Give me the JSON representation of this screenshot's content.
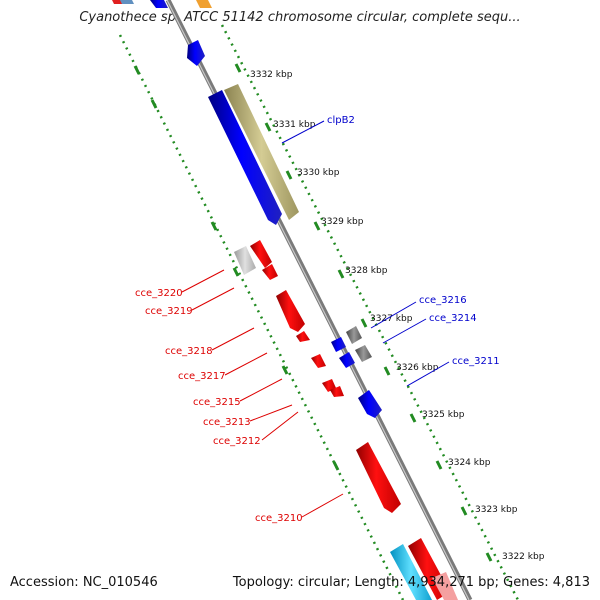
{
  "title": "Cyanothece sp. ATCC 51142 chromosome circular, complete sequ...",
  "footer": {
    "accession": "Accession: NC_010546",
    "summary": "Topology: circular; Length: 4,934,271 bp; Genes: 4,813"
  },
  "colors": {
    "forward_strand": "#0000ee",
    "reverse_strand": "#ee0000",
    "rna": "#b0a870",
    "grey_feature": "#777777",
    "light_grey_feature": "#c0c0c0",
    "cyan_feature": "#22c8f0",
    "backbone": "#888888",
    "dotted_guides": "#228b22"
  },
  "axis": {
    "ticks": [
      "3332 kbp",
      "3331 kbp",
      "3330 kbp",
      "3329 kbp",
      "3328 kbp",
      "3327 kbp",
      "3326 kbp",
      "3325 kbp",
      "3324 kbp",
      "3323 kbp",
      "3322 kbp"
    ]
  },
  "labels": {
    "forward": [
      "clpB2",
      "cce_3216",
      "cce_3214",
      "cce_3211"
    ],
    "reverse": [
      "cce_3220",
      "cce_3219",
      "cce_3218",
      "cce_3217",
      "cce_3215",
      "cce_3213",
      "cce_3212",
      "cce_3210"
    ]
  }
}
